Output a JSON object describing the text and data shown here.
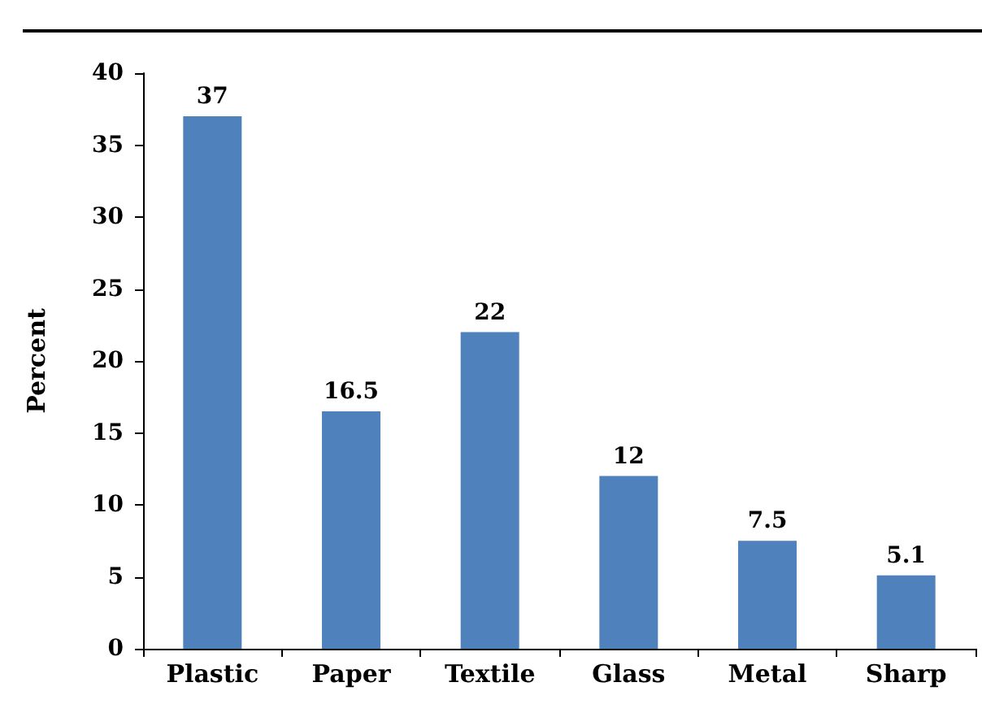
{
  "chart_data": {
    "type": "bar",
    "ylabel": "Percent",
    "categories": [
      "Plastic",
      "Paper",
      "Textile",
      "Glass",
      "Metal",
      "Sharp"
    ],
    "values": [
      37,
      16.5,
      22,
      12,
      7.5,
      5.1
    ],
    "color": "#4f81bd",
    "ylim": [
      0,
      40
    ],
    "yticks": [
      0,
      5,
      10,
      15,
      20,
      25,
      30,
      35,
      40
    ],
    "grid": false,
    "data_labels": true
  }
}
